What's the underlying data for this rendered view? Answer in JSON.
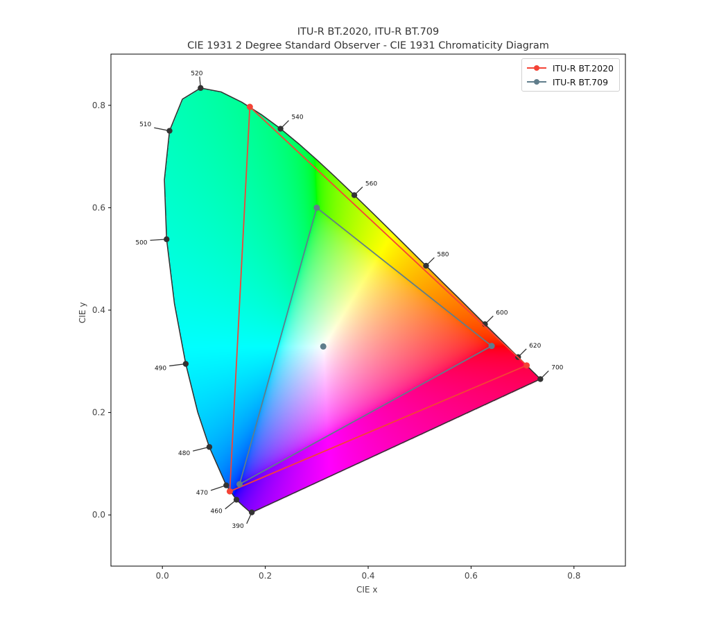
{
  "chart_data": {
    "type": "scatter",
    "title": "ITU-R BT.2020, ITU-R BT.709",
    "subtitle": "CIE 1931 2 Degree Standard Observer - CIE 1931 Chromaticity Diagram",
    "xlabel": "CIE x",
    "ylabel": "CIE y",
    "xlim": [
      -0.1,
      0.9
    ],
    "ylim": [
      -0.1,
      0.9
    ],
    "xticks": [
      0.0,
      0.2,
      0.4,
      0.6,
      0.8
    ],
    "yticks": [
      0.0,
      0.2,
      0.4,
      0.6,
      0.8
    ],
    "xtick_labels": [
      "0.0",
      "0.2",
      "0.4",
      "0.6",
      "0.8"
    ],
    "ytick_labels": [
      "0.0",
      "0.2",
      "0.4",
      "0.6",
      "0.8"
    ],
    "grid": false,
    "legend_position": "top-right",
    "spectral_locus": [
      [
        0.1741,
        0.005
      ],
      [
        0.1738,
        0.0049
      ],
      [
        0.1733,
        0.0048
      ],
      [
        0.1726,
        0.0048
      ],
      [
        0.1714,
        0.0051
      ],
      [
        0.1689,
        0.0069
      ],
      [
        0.1644,
        0.0109
      ],
      [
        0.1566,
        0.0177
      ],
      [
        0.144,
        0.0297
      ],
      [
        0.1241,
        0.0578
      ],
      [
        0.0913,
        0.1327
      ],
      [
        0.0687,
        0.2007
      ],
      [
        0.0454,
        0.295
      ],
      [
        0.0235,
        0.4127
      ],
      [
        0.0082,
        0.5384
      ],
      [
        0.0039,
        0.6548
      ],
      [
        0.0139,
        0.7502
      ],
      [
        0.0389,
        0.812
      ],
      [
        0.0743,
        0.8338
      ],
      [
        0.1142,
        0.8262
      ],
      [
        0.1547,
        0.8059
      ],
      [
        0.1929,
        0.7816
      ],
      [
        0.2296,
        0.7543
      ],
      [
        0.2658,
        0.7243
      ],
      [
        0.3016,
        0.6923
      ],
      [
        0.3373,
        0.6589
      ],
      [
        0.3731,
        0.6245
      ],
      [
        0.4087,
        0.5896
      ],
      [
        0.4441,
        0.5547
      ],
      [
        0.4788,
        0.5202
      ],
      [
        0.5125,
        0.4866
      ],
      [
        0.5448,
        0.4544
      ],
      [
        0.5752,
        0.4242
      ],
      [
        0.6029,
        0.3965
      ],
      [
        0.627,
        0.3725
      ],
      [
        0.6482,
        0.3514
      ],
      [
        0.6658,
        0.334
      ],
      [
        0.6801,
        0.3197
      ],
      [
        0.6915,
        0.3083
      ],
      [
        0.7006,
        0.2993
      ],
      [
        0.7079,
        0.292
      ],
      [
        0.714,
        0.2859
      ],
      [
        0.719,
        0.2809
      ],
      [
        0.723,
        0.277
      ],
      [
        0.726,
        0.274
      ],
      [
        0.7283,
        0.2717
      ],
      [
        0.73,
        0.27
      ],
      [
        0.7311,
        0.2689
      ],
      [
        0.732,
        0.268
      ],
      [
        0.7327,
        0.2673
      ],
      [
        0.7334,
        0.2666
      ],
      [
        0.734,
        0.266
      ],
      [
        0.7344,
        0.2656
      ],
      [
        0.7346,
        0.2654
      ],
      [
        0.7347,
        0.2653
      ]
    ],
    "wavelength_markers": [
      {
        "label": "390",
        "x": 0.1738,
        "y": 0.0049,
        "dx": -0.01,
        "dy": -0.022
      },
      {
        "label": "460",
        "x": 0.144,
        "y": 0.0297,
        "dx": -0.022,
        "dy": -0.018
      },
      {
        "label": "470",
        "x": 0.1241,
        "y": 0.0578,
        "dx": -0.03,
        "dy": -0.01
      },
      {
        "label": "480",
        "x": 0.0913,
        "y": 0.1327,
        "dx": -0.032,
        "dy": -0.008
      },
      {
        "label": "490",
        "x": 0.0454,
        "y": 0.295,
        "dx": -0.032,
        "dy": -0.004
      },
      {
        "label": "500",
        "x": 0.0082,
        "y": 0.5384,
        "dx": -0.032,
        "dy": -0.002
      },
      {
        "label": "510",
        "x": 0.0139,
        "y": 0.7502,
        "dx": -0.03,
        "dy": 0.006
      },
      {
        "label": "520",
        "x": 0.0743,
        "y": 0.8338,
        "dx": -0.002,
        "dy": 0.022
      },
      {
        "label": "540",
        "x": 0.2296,
        "y": 0.7543,
        "dx": 0.016,
        "dy": 0.016
      },
      {
        "label": "560",
        "x": 0.3731,
        "y": 0.6245,
        "dx": 0.016,
        "dy": 0.016
      },
      {
        "label": "580",
        "x": 0.5125,
        "y": 0.4866,
        "dx": 0.016,
        "dy": 0.016
      },
      {
        "label": "600",
        "x": 0.627,
        "y": 0.3725,
        "dx": 0.016,
        "dy": 0.016
      },
      {
        "label": "620",
        "x": 0.6915,
        "y": 0.3083,
        "dx": 0.016,
        "dy": 0.016
      },
      {
        "label": "700",
        "x": 0.7347,
        "y": 0.2653,
        "dx": 0.016,
        "dy": 0.016
      }
    ],
    "series": [
      {
        "name": "ITU-R BT.2020",
        "color": "#f44336",
        "points": [
          [
            0.708,
            0.292
          ],
          [
            0.17,
            0.797
          ],
          [
            0.131,
            0.046
          ]
        ]
      },
      {
        "name": "ITU-R BT.709",
        "color": "#607d8b",
        "points": [
          [
            0.64,
            0.33
          ],
          [
            0.3,
            0.6
          ],
          [
            0.15,
            0.06
          ]
        ],
        "whitepoint": [
          0.3127,
          0.329
        ]
      }
    ]
  }
}
